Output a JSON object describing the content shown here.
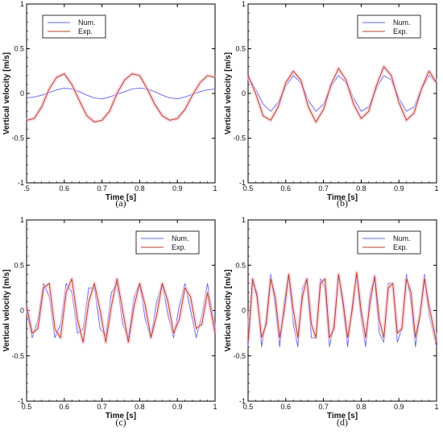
{
  "chart_data": [
    {
      "type": "line",
      "caption": "(a)",
      "xlabel": "Time [s]",
      "ylabel": "Vertical velocity [m/s]",
      "xlim": [
        0.5,
        1.0
      ],
      "ylim": [
        -1.0,
        1.0
      ],
      "x_ticks": [
        {
          "value": 0.5,
          "label": ".5"
        },
        {
          "value": 0.6,
          "label": "0.6"
        },
        {
          "value": 0.7,
          "label": "0.7"
        },
        {
          "value": 0.8,
          "label": "0.8"
        },
        {
          "value": 0.9,
          "label": "0.9"
        },
        {
          "value": 1.0,
          "label": "1"
        }
      ],
      "y_ticks": [
        {
          "value": -1.0,
          "label": "-1"
        },
        {
          "value": -0.5,
          "label": "-0.5"
        },
        {
          "value": 0.0,
          "label": "0"
        },
        {
          "value": 0.5,
          "label": "0.5"
        },
        {
          "value": 1.0,
          "label": "1"
        }
      ],
      "legend_position": "top-left",
      "x": [
        0.5,
        0.52,
        0.54,
        0.56,
        0.58,
        0.6,
        0.62,
        0.64,
        0.66,
        0.68,
        0.7,
        0.72,
        0.74,
        0.76,
        0.78,
        0.8,
        0.82,
        0.84,
        0.86,
        0.88,
        0.9,
        0.92,
        0.94,
        0.96,
        0.98,
        1.0
      ],
      "series": [
        {
          "name": "Num.",
          "color": "#6060ee",
          "values": [
            -0.05,
            -0.04,
            -0.02,
            0.01,
            0.04,
            0.06,
            0.05,
            0.02,
            -0.02,
            -0.05,
            -0.06,
            -0.04,
            -0.01,
            0.02,
            0.05,
            0.06,
            0.05,
            0.02,
            -0.02,
            -0.05,
            -0.06,
            -0.04,
            -0.01,
            0.02,
            0.04,
            0.05
          ]
        },
        {
          "name": "Exp.",
          "color": "#b5402a",
          "values": [
            -0.3,
            -0.28,
            -0.15,
            0.05,
            0.18,
            0.22,
            0.1,
            -0.08,
            -0.25,
            -0.32,
            -0.3,
            -0.2,
            0.0,
            0.15,
            0.22,
            0.2,
            0.05,
            -0.12,
            -0.25,
            -0.3,
            -0.28,
            -0.18,
            -0.02,
            0.12,
            0.2,
            0.18
          ]
        }
      ]
    },
    {
      "type": "line",
      "caption": "(b)",
      "xlabel": "Time [s]",
      "ylabel": "Vertical velocity [m/s]",
      "xlim": [
        0.5,
        1.0
      ],
      "ylim": [
        -1.0,
        1.0
      ],
      "x_ticks": [
        {
          "value": 0.5,
          "label": "0.5"
        },
        {
          "value": 0.6,
          "label": "0.6"
        },
        {
          "value": 0.7,
          "label": "0.7"
        },
        {
          "value": 0.8,
          "label": "0.8"
        },
        {
          "value": 0.9,
          "label": "0.9"
        },
        {
          "value": 1.0,
          "label": "1"
        }
      ],
      "y_ticks": [
        {
          "value": -1.0,
          "label": "-1"
        },
        {
          "value": -0.5,
          "label": "-0.5"
        },
        {
          "value": 0.0,
          "label": "0"
        },
        {
          "value": 0.5,
          "label": "0.5"
        },
        {
          "value": 1.0,
          "label": "1"
        }
      ],
      "legend_position": "top-right",
      "x": [
        0.5,
        0.52,
        0.54,
        0.56,
        0.58,
        0.6,
        0.62,
        0.64,
        0.66,
        0.68,
        0.7,
        0.72,
        0.74,
        0.76,
        0.78,
        0.8,
        0.82,
        0.84,
        0.86,
        0.88,
        0.9,
        0.92,
        0.94,
        0.96,
        0.98,
        1.0
      ],
      "series": [
        {
          "name": "Num.",
          "color": "#6060ee",
          "values": [
            0.18,
            0.05,
            -0.12,
            -0.2,
            -0.1,
            0.08,
            0.2,
            0.12,
            -0.08,
            -0.2,
            -0.12,
            0.08,
            0.2,
            0.12,
            -0.05,
            -0.2,
            -0.15,
            0.05,
            0.2,
            0.15,
            -0.05,
            -0.2,
            -0.15,
            0.05,
            0.2,
            0.12
          ]
        },
        {
          "name": "Exp.",
          "color": "#b5402a",
          "values": [
            0.2,
            0.0,
            -0.25,
            -0.3,
            -0.15,
            0.12,
            0.25,
            0.15,
            -0.15,
            -0.32,
            -0.18,
            0.1,
            0.28,
            0.15,
            -0.12,
            -0.28,
            -0.2,
            0.08,
            0.3,
            0.2,
            -0.1,
            -0.3,
            -0.22,
            0.05,
            0.25,
            0.12
          ]
        }
      ]
    },
    {
      "type": "line",
      "caption": "(c)",
      "xlabel": "Time [s]",
      "ylabel": "Vertical velocity [m/s]",
      "xlim": [
        0.5,
        1.0
      ],
      "ylim": [
        -1.0,
        1.0
      ],
      "x_ticks": [
        {
          "value": 0.5,
          "label": "0.5"
        },
        {
          "value": 0.6,
          "label": "0.6"
        },
        {
          "value": 0.7,
          "label": "0.7"
        },
        {
          "value": 0.8,
          "label": "0.8"
        },
        {
          "value": 0.9,
          "label": "0.9"
        },
        {
          "value": 1.0,
          "label": "1"
        }
      ],
      "y_ticks": [
        {
          "value": -1.0,
          "label": "-1"
        },
        {
          "value": -0.5,
          "label": "-0.5"
        },
        {
          "value": 0.0,
          "label": "0"
        },
        {
          "value": 0.5,
          "label": "0.5"
        },
        {
          "value": 1.0,
          "label": "1"
        }
      ],
      "legend_position": "top-right",
      "x": [
        0.5,
        0.515,
        0.53,
        0.545,
        0.56,
        0.575,
        0.59,
        0.605,
        0.62,
        0.635,
        0.65,
        0.665,
        0.68,
        0.695,
        0.71,
        0.725,
        0.74,
        0.755,
        0.77,
        0.785,
        0.8,
        0.815,
        0.83,
        0.845,
        0.86,
        0.875,
        0.89,
        0.905,
        0.92,
        0.935,
        0.95,
        0.965,
        0.98,
        1.0
      ],
      "series": [
        {
          "name": "Num.",
          "color": "#6060ee",
          "values": [
            0.0,
            -0.3,
            -0.1,
            0.3,
            0.15,
            -0.3,
            -0.15,
            0.3,
            0.2,
            -0.25,
            -0.2,
            0.25,
            0.25,
            -0.2,
            -0.28,
            0.2,
            0.3,
            -0.15,
            -0.3,
            0.15,
            0.3,
            -0.1,
            -0.3,
            0.1,
            0.3,
            -0.05,
            -0.3,
            0.05,
            0.3,
            0.0,
            -0.3,
            -0.05,
            0.3,
            -0.2
          ]
        },
        {
          "name": "Exp.",
          "color": "#b5402a",
          "values": [
            0.05,
            -0.25,
            -0.2,
            0.25,
            0.3,
            -0.2,
            -0.3,
            0.2,
            0.35,
            -0.1,
            -0.35,
            0.1,
            0.3,
            0.0,
            -0.35,
            0.05,
            0.35,
            0.0,
            -0.35,
            0.05,
            0.3,
            0.05,
            -0.3,
            -0.05,
            0.3,
            0.1,
            -0.25,
            -0.1,
            0.25,
            0.15,
            -0.2,
            -0.15,
            0.2,
            -0.25
          ]
        }
      ]
    },
    {
      "type": "line",
      "caption": "(d)",
      "xlabel": "Time [s]",
      "ylabel": "Vertical velocity [m/s]",
      "xlim": [
        0.5,
        1.0
      ],
      "ylim": [
        -1.0,
        1.0
      ],
      "x_ticks": [
        {
          "value": 0.5,
          "label": "0.5"
        },
        {
          "value": 0.6,
          "label": "0.6"
        },
        {
          "value": 0.7,
          "label": "0.7"
        },
        {
          "value": 0.8,
          "label": "0.8"
        },
        {
          "value": 0.9,
          "label": "0.9"
        },
        {
          "value": 1.0,
          "label": "1"
        }
      ],
      "y_ticks": [
        {
          "value": -1.0,
          "label": "-1"
        },
        {
          "value": -0.5,
          "label": "-0.5"
        },
        {
          "value": 0.0,
          "label": "0"
        },
        {
          "value": 0.5,
          "label": "0.5"
        },
        {
          "value": 1.0,
          "label": "1"
        }
      ],
      "legend_position": "top-right",
      "x": [
        0.5,
        0.512,
        0.524,
        0.536,
        0.548,
        0.56,
        0.572,
        0.584,
        0.596,
        0.608,
        0.62,
        0.632,
        0.644,
        0.656,
        0.668,
        0.68,
        0.692,
        0.704,
        0.716,
        0.728,
        0.74,
        0.752,
        0.764,
        0.776,
        0.788,
        0.8,
        0.812,
        0.824,
        0.836,
        0.848,
        0.86,
        0.872,
        0.884,
        0.896,
        0.908,
        0.92,
        0.932,
        0.944,
        0.956,
        0.968,
        0.98,
        1.0
      ],
      "series": [
        {
          "name": "Num.",
          "color": "#6060ee",
          "values": [
            -0.4,
            0.3,
            0.2,
            -0.4,
            -0.1,
            0.4,
            0.05,
            -0.4,
            0.1,
            0.4,
            -0.15,
            -0.4,
            0.25,
            0.35,
            -0.3,
            -0.3,
            0.35,
            0.25,
            -0.4,
            -0.15,
            0.4,
            0.05,
            -0.4,
            0.05,
            0.4,
            -0.1,
            -0.4,
            0.2,
            0.35,
            -0.25,
            -0.35,
            0.3,
            0.3,
            -0.35,
            -0.2,
            0.4,
            0.1,
            -0.4,
            -0.05,
            0.4,
            -0.05,
            -0.4
          ]
        },
        {
          "name": "Exp.",
          "color": "#b5402a",
          "values": [
            -0.35,
            0.35,
            0.15,
            -0.3,
            -0.15,
            0.35,
            0.15,
            -0.3,
            0.0,
            0.4,
            0.0,
            -0.3,
            0.15,
            0.35,
            -0.15,
            -0.3,
            0.3,
            0.35,
            -0.3,
            -0.2,
            0.4,
            0.1,
            -0.3,
            0.0,
            0.42,
            0.0,
            -0.3,
            0.1,
            0.38,
            -0.1,
            -0.3,
            0.25,
            0.3,
            -0.25,
            -0.2,
            0.35,
            0.2,
            -0.3,
            -0.05,
            0.35,
            0.05,
            -0.35
          ]
        }
      ]
    }
  ]
}
